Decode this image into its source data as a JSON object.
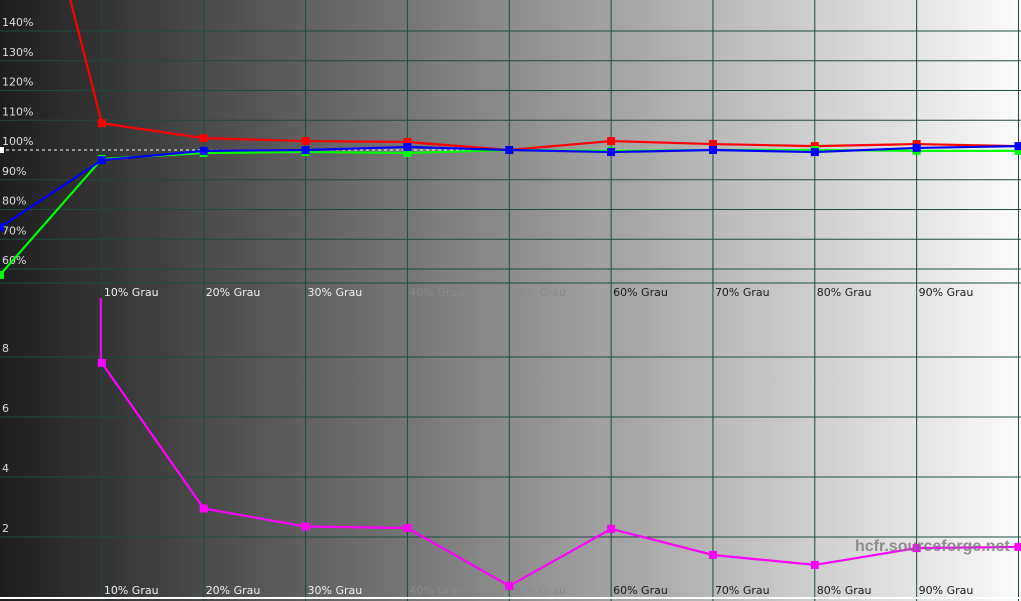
{
  "chart_data": [
    {
      "type": "line",
      "x": [
        0,
        10,
        20,
        30,
        40,
        50,
        60,
        70,
        80,
        90,
        100
      ],
      "categories": [
        "",
        "10% Grau",
        "20% Grau",
        "30% Grau",
        "40% Grau",
        "50% Grau",
        "60% Grau",
        "70% Grau",
        "80% Grau",
        "90% Grau",
        ""
      ],
      "ylim": [
        55,
        150
      ],
      "y_ticks": [
        "140%",
        "130%",
        "120%",
        "110%",
        "100%",
        "90%",
        "80%",
        "70%",
        "60%"
      ],
      "y_tick_values": [
        140,
        130,
        120,
        110,
        100,
        90,
        80,
        70,
        60
      ],
      "reference_line": 100,
      "grid": true,
      "series": [
        {
          "color": "#ff0000",
          "values": [
            243,
            109,
            104,
            103,
            102.7,
            100,
            103,
            102,
            101.3,
            102,
            101.3
          ]
        },
        {
          "color": "#00ff00",
          "values": [
            58,
            97,
            99,
            99.3,
            99,
            100,
            99.7,
            100,
            100,
            99.7,
            99.7
          ]
        },
        {
          "color": "#0000ff",
          "values": [
            74,
            96.6,
            99.7,
            100,
            101,
            100,
            99.3,
            100,
            99.3,
            100.7,
            101.3
          ]
        }
      ]
    },
    {
      "type": "line",
      "x": [
        10,
        20,
        30,
        40,
        50,
        60,
        70,
        80,
        90,
        100
      ],
      "categories": [
        "10% Grau",
        "20% Grau",
        "30% Grau",
        "40% Grau",
        "50% Grau",
        "60% Grau",
        "70% Grau",
        "80% Grau",
        "90% Grau",
        ""
      ],
      "ylim": [
        0,
        10
      ],
      "y_ticks": [
        "8",
        "6",
        "4",
        "2"
      ],
      "y_tick_values": [
        8,
        6,
        4,
        2
      ],
      "grid": true,
      "series": [
        {
          "color": "#ff00ff",
          "values": [
            7.8,
            2.95,
            2.35,
            2.3,
            0.37,
            2.27,
            1.4,
            1.07,
            1.63,
            1.67
          ]
        }
      ]
    }
  ],
  "watermark": "hcfr.sourceforge.net",
  "colors": {
    "grid": "#1d4a45",
    "bg_start": "#1e1e1e",
    "bg_end": "#fbfbfb"
  }
}
